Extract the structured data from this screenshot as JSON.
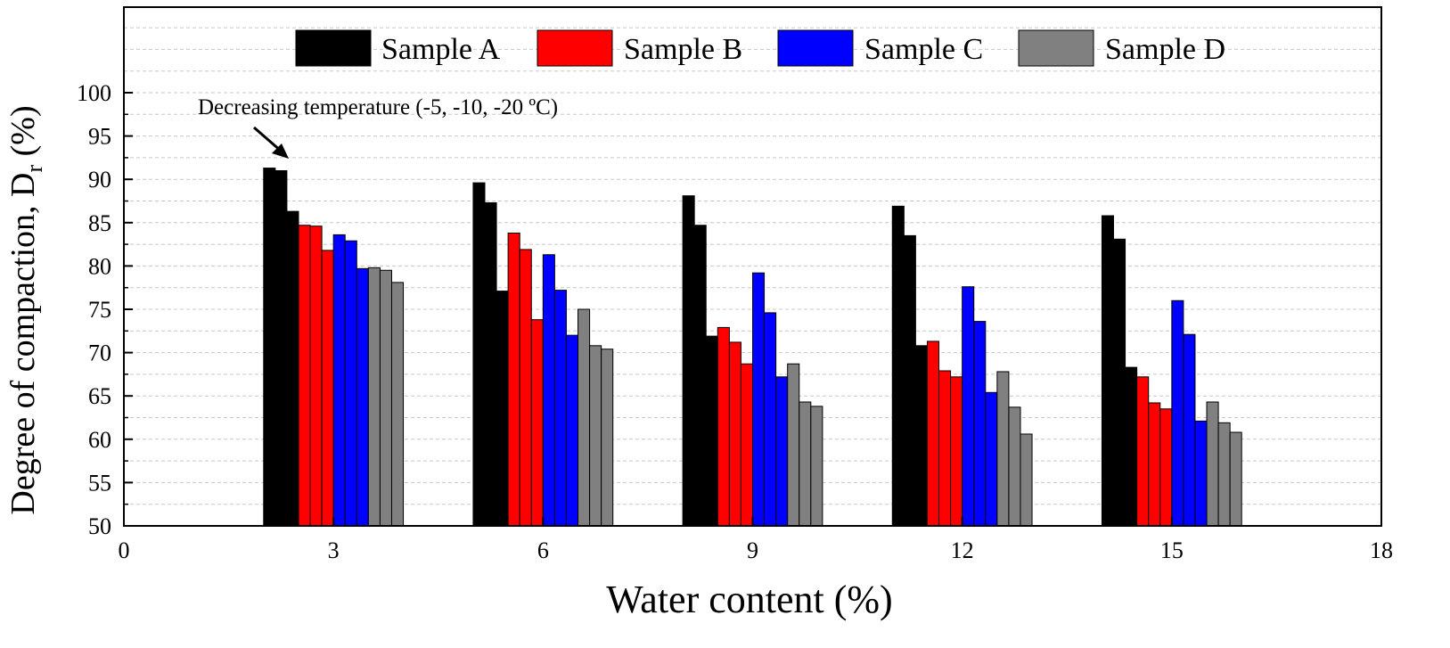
{
  "chart_data": {
    "type": "bar",
    "title": "",
    "xlabel": "Water content (%)",
    "ylabel_main": "Degree of compaction, D",
    "ylabel_sub": "r",
    "ylabel_unit": " (%)",
    "xlim": [
      0,
      18
    ],
    "ylim": [
      50,
      100
    ],
    "x_ticks": [
      0,
      3,
      6,
      9,
      12,
      15,
      18
    ],
    "y_ticks": [
      50,
      55,
      60,
      65,
      70,
      75,
      80,
      85,
      90,
      95,
      100
    ],
    "grid": "horizontal dashed",
    "legend_position": "top",
    "annotation": "Decreasing temperature (-5, -10, -20 ºC)",
    "temperatures": [
      "-5",
      "-10",
      "-20"
    ],
    "categories": [
      3,
      6,
      9,
      12,
      15
    ],
    "series": [
      {
        "name": "Sample A",
        "color": "#000000",
        "values": [
          [
            91.3,
            91.0,
            86.3
          ],
          [
            89.6,
            87.3,
            77.1
          ],
          [
            88.1,
            84.7,
            71.9
          ],
          [
            86.9,
            83.5,
            70.8
          ],
          [
            85.8,
            83.1,
            68.3
          ]
        ]
      },
      {
        "name": "Sample B",
        "color": "#ff0000",
        "values": [
          [
            84.7,
            84.6,
            81.8
          ],
          [
            83.8,
            81.9,
            73.8
          ],
          [
            72.9,
            71.2,
            68.7
          ],
          [
            71.3,
            67.9,
            67.2
          ],
          [
            67.2,
            64.2,
            63.5
          ]
        ]
      },
      {
        "name": "Sample C",
        "color": "#0000ff",
        "values": [
          [
            83.6,
            82.9,
            79.7
          ],
          [
            81.3,
            77.2,
            72.0
          ],
          [
            79.2,
            74.6,
            67.2
          ],
          [
            77.6,
            73.6,
            65.4
          ],
          [
            76.0,
            72.1,
            62.1
          ]
        ]
      },
      {
        "name": "Sample D",
        "color": "#808080",
        "values": [
          [
            79.8,
            79.5,
            78.1
          ],
          [
            75.0,
            70.8,
            70.4
          ],
          [
            68.7,
            64.3,
            63.8
          ],
          [
            67.8,
            63.7,
            60.6
          ],
          [
            64.3,
            61.9,
            60.8
          ]
        ]
      }
    ]
  }
}
